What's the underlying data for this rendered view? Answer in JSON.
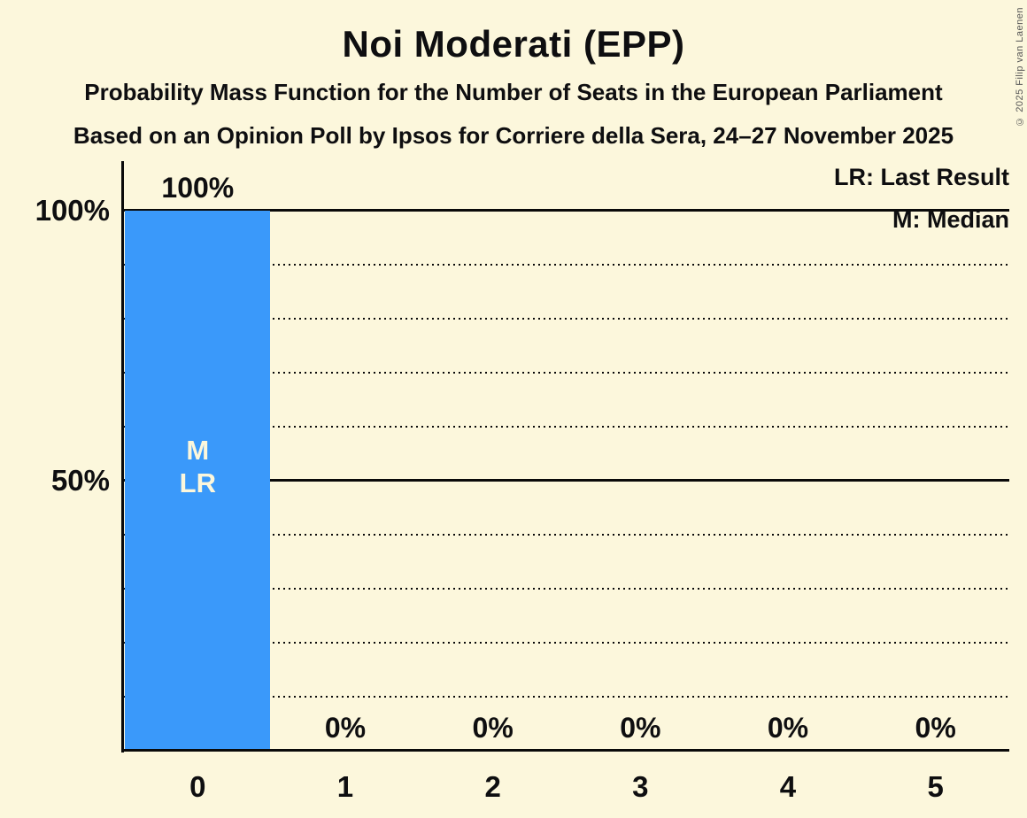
{
  "header": {
    "title": "Noi Moderati (EPP)",
    "subtitle1": "Probability Mass Function for the Number of Seats in the European Parliament",
    "subtitle2": "Based on an Opinion Poll by Ipsos for Corriere della Sera, 24–27 November 2025"
  },
  "legend": {
    "lr": "LR: Last Result",
    "m": "M: Median"
  },
  "copyright": "© 2025 Filip van Laenen",
  "colors": {
    "background": "#FCF7DC",
    "bar": "#3A99FA",
    "text": "#0E0E10",
    "grid": "#0A0A0A",
    "bar_annotation_text": "#FCF7DC",
    "copyright_text": "#555555"
  },
  "chart_data": {
    "type": "bar",
    "title": "Noi Moderati (EPP)",
    "subtitle": "Probability Mass Function for the Number of Seats in the European Parliament",
    "source_line": "Based on an Opinion Poll by Ipsos for Corriere della Sera, 24–27 November 2025",
    "categories": [
      "0",
      "1",
      "2",
      "3",
      "4",
      "5"
    ],
    "values": [
      100,
      0,
      0,
      0,
      0,
      0
    ],
    "value_labels": [
      "100%",
      "0%",
      "0%",
      "0%",
      "0%",
      "0%"
    ],
    "xlabel": "",
    "ylabel": "",
    "ylim": [
      0,
      100
    ],
    "yticks": [
      {
        "pct": 100,
        "label": "100%"
      },
      {
        "pct": 50,
        "label": "50%"
      }
    ],
    "gridlines_solid": [
      50,
      100
    ],
    "gridlines_dotted": [
      10,
      20,
      30,
      40,
      60,
      70,
      80,
      90
    ],
    "grid": true,
    "legend_position": "top-right",
    "bar_color": "#3A99FA",
    "annotations": {
      "bar_index": 0,
      "lines": [
        "M",
        "LR"
      ],
      "meaning": {
        "M": "Median",
        "LR": "Last Result"
      }
    }
  }
}
